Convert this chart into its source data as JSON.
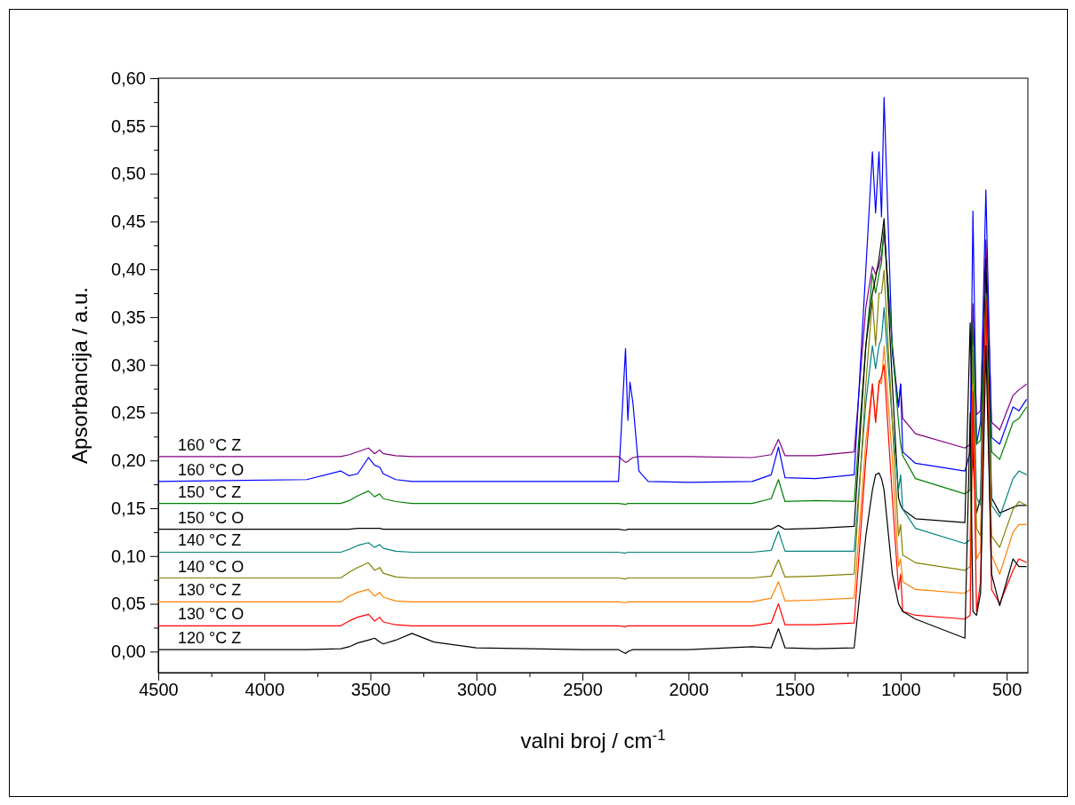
{
  "chart_data": {
    "type": "line",
    "xlabel": "valni broj / cm$^{-1}$",
    "ylabel": "Apsorbancija / a.u.",
    "x": [
      4500,
      3800,
      3640,
      3600,
      3560,
      3509,
      3480,
      3456,
      3439,
      3380,
      3304,
      3200,
      3000,
      2500,
      2330,
      2297,
      2286,
      2276,
      2262,
      2234,
      2190,
      2000,
      1700,
      1610,
      1576,
      1545,
      1400,
      1219,
      1164,
      1133,
      1118,
      1102,
      1090,
      1078,
      1039,
      1010,
      1000,
      990,
      930,
      697,
      672,
      659,
      642,
      623,
      598,
      571,
      533,
      470,
      442,
      406
    ],
    "xlim": [
      4500,
      400
    ],
    "xticks": [
      4500,
      {
        "value": 4250,
        "label": null
      },
      4000,
      {
        "value": 3750,
        "label": null
      },
      3500,
      {
        "value": 3250,
        "label": null
      },
      3000,
      {
        "value": 2750,
        "label": null
      },
      2500,
      {
        "value": 2250,
        "label": null
      },
      2000,
      {
        "value": 1750,
        "label": null
      },
      1500,
      {
        "value": 1250,
        "label": null
      },
      1000,
      {
        "value": 750,
        "label": null
      },
      500
    ],
    "ylim": [
      -0.022,
      0.6
    ],
    "yticks": [
      {
        "value": 0,
        "label": "0,00"
      },
      {
        "value": 0.025,
        "label": null
      },
      {
        "value": 0.05,
        "label": "0,05"
      },
      {
        "value": 0.075,
        "label": null
      },
      {
        "value": 0.1,
        "label": "0,10"
      },
      {
        "value": 0.125,
        "label": null
      },
      {
        "value": 0.15,
        "label": "0,15"
      },
      {
        "value": 0.175,
        "label": null
      },
      {
        "value": 0.2,
        "label": "0,20"
      },
      {
        "value": 0.225,
        "label": null
      },
      {
        "value": 0.25,
        "label": "0,25"
      },
      {
        "value": 0.275,
        "label": null
      },
      {
        "value": 0.3,
        "label": "0,30"
      },
      {
        "value": 0.325,
        "label": null
      },
      {
        "value": 0.35,
        "label": "0,35"
      },
      {
        "value": 0.375,
        "label": null
      },
      {
        "value": 0.4,
        "label": "0,40"
      },
      {
        "value": 0.425,
        "label": null
      },
      {
        "value": 0.45,
        "label": "0,45"
      },
      {
        "value": 0.475,
        "label": null
      },
      {
        "value": 0.5,
        "label": "0,50"
      },
      {
        "value": 0.525,
        "label": null
      },
      {
        "value": 0.55,
        "label": "0,55"
      },
      {
        "value": 0.575,
        "label": null
      },
      {
        "value": 0.6,
        "label": "0,60"
      }
    ],
    "grid": false,
    "legend": false,
    "marker": "none",
    "line_style": "solid",
    "series": [
      {
        "name": "160 °C Z",
        "color": "#800080",
        "values": [
          0.204,
          0.204,
          0.204,
          0.206,
          0.209,
          0.213,
          0.207,
          0.211,
          0.207,
          0.205,
          0.204,
          0.204,
          0.204,
          0.204,
          0.204,
          0.198,
          0.199,
          0.201,
          0.203,
          0.204,
          0.204,
          0.204,
          0.203,
          0.206,
          0.222,
          0.205,
          0.205,
          0.209,
          0.36,
          0.403,
          0.395,
          0.403,
          0.415,
          0.439,
          0.32,
          0.256,
          0.28,
          0.244,
          0.228,
          0.213,
          0.217,
          0.364,
          0.248,
          0.252,
          0.431,
          0.24,
          0.232,
          0.268,
          0.274,
          0.28
        ]
      },
      {
        "name": "160 °C O",
        "color": "#0000ff",
        "values": [
          0.178,
          0.18,
          0.189,
          0.184,
          0.186,
          0.203,
          0.195,
          0.193,
          0.186,
          0.18,
          0.178,
          0.178,
          0.178,
          0.178,
          0.178,
          0.317,
          0.242,
          0.282,
          0.26,
          0.189,
          0.178,
          0.177,
          0.178,
          0.185,
          0.214,
          0.182,
          0.181,
          0.185,
          0.4,
          0.523,
          0.459,
          0.523,
          0.455,
          0.58,
          0.312,
          0.256,
          0.28,
          0.209,
          0.197,
          0.189,
          0.209,
          0.461,
          0.217,
          0.24,
          0.483,
          0.224,
          0.217,
          0.256,
          0.252,
          0.264
        ]
      },
      {
        "name": "150 °C Z",
        "color": "#008000",
        "values": [
          0.155,
          0.155,
          0.155,
          0.158,
          0.163,
          0.168,
          0.162,
          0.165,
          0.16,
          0.157,
          0.155,
          0.155,
          0.155,
          0.155,
          0.155,
          0.154,
          0.155,
          0.155,
          0.155,
          0.155,
          0.155,
          0.155,
          0.155,
          0.16,
          0.18,
          0.157,
          0.158,
          0.157,
          0.32,
          0.395,
          0.375,
          0.395,
          0.407,
          0.443,
          0.32,
          0.24,
          0.217,
          0.205,
          0.181,
          0.165,
          0.169,
          0.344,
          0.217,
          0.221,
          0.383,
          0.209,
          0.201,
          0.24,
          0.244,
          0.256
        ]
      },
      {
        "name": "150 °C O",
        "color": "#000000",
        "values": [
          0.128,
          0.128,
          0.128,
          0.128,
          0.129,
          0.129,
          0.129,
          0.129,
          0.128,
          0.128,
          0.128,
          0.128,
          0.128,
          0.128,
          0.128,
          0.127,
          0.128,
          0.128,
          0.128,
          0.128,
          0.128,
          0.128,
          0.128,
          0.128,
          0.132,
          0.128,
          0.129,
          0.131,
          0.32,
          0.375,
          0.391,
          0.411,
          0.431,
          0.453,
          0.28,
          0.161,
          0.153,
          0.149,
          0.139,
          0.135,
          0.344,
          0.201,
          0.145,
          0.161,
          0.411,
          0.161,
          0.145,
          0.151,
          0.153,
          0.153
        ]
      },
      {
        "name": "140 °C Z",
        "color": "#008080",
        "values": [
          0.104,
          0.104,
          0.104,
          0.107,
          0.111,
          0.114,
          0.109,
          0.112,
          0.108,
          0.105,
          0.104,
          0.104,
          0.104,
          0.104,
          0.104,
          0.103,
          0.104,
          0.104,
          0.104,
          0.104,
          0.104,
          0.104,
          0.104,
          0.106,
          0.126,
          0.105,
          0.105,
          0.105,
          0.26,
          0.32,
          0.296,
          0.32,
          0.328,
          0.36,
          0.24,
          0.169,
          0.185,
          0.149,
          0.129,
          0.113,
          0.117,
          0.32,
          0.161,
          0.153,
          0.36,
          0.153,
          0.141,
          0.181,
          0.189,
          0.185
        ]
      },
      {
        "name": "140 °C O",
        "color": "#808000",
        "values": [
          0.077,
          0.077,
          0.077,
          0.083,
          0.088,
          0.093,
          0.085,
          0.088,
          0.082,
          0.078,
          0.077,
          0.077,
          0.077,
          0.077,
          0.077,
          0.076,
          0.077,
          0.077,
          0.077,
          0.077,
          0.077,
          0.077,
          0.077,
          0.079,
          0.096,
          0.078,
          0.079,
          0.081,
          0.28,
          0.368,
          0.32,
          0.375,
          0.375,
          0.399,
          0.24,
          0.121,
          0.133,
          0.101,
          0.093,
          0.085,
          0.089,
          0.32,
          0.129,
          0.121,
          0.375,
          0.121,
          0.109,
          0.149,
          0.157,
          0.153
        ]
      },
      {
        "name": "130 °C Z",
        "color": "#ff8000",
        "values": [
          0.052,
          0.052,
          0.052,
          0.058,
          0.062,
          0.065,
          0.058,
          0.062,
          0.057,
          0.053,
          0.052,
          0.052,
          0.052,
          0.052,
          0.052,
          0.051,
          0.052,
          0.052,
          0.052,
          0.052,
          0.052,
          0.052,
          0.052,
          0.056,
          0.073,
          0.053,
          0.054,
          0.056,
          0.22,
          0.28,
          0.24,
          0.284,
          0.28,
          0.32,
          0.201,
          0.089,
          0.097,
          0.073,
          0.065,
          0.061,
          0.065,
          0.28,
          0.097,
          0.105,
          0.352,
          0.101,
          0.081,
          0.125,
          0.133,
          0.133
        ]
      },
      {
        "name": "130 °C O",
        "color": "#ff0000",
        "values": [
          0.027,
          0.027,
          0.027,
          0.032,
          0.036,
          0.039,
          0.032,
          0.036,
          0.031,
          0.028,
          0.027,
          0.027,
          0.027,
          0.027,
          0.027,
          0.026,
          0.027,
          0.027,
          0.027,
          0.027,
          0.027,
          0.027,
          0.027,
          0.03,
          0.05,
          0.028,
          0.028,
          0.03,
          0.201,
          0.28,
          0.24,
          0.28,
          0.288,
          0.3,
          0.161,
          0.065,
          0.081,
          0.042,
          0.038,
          0.034,
          0.038,
          0.272,
          0.042,
          0.073,
          0.368,
          0.065,
          0.05,
          0.085,
          0.097,
          0.093
        ]
      },
      {
        "name": "120 °C Z",
        "color": "#000000",
        "values": [
          0.002,
          0.002,
          0.003,
          0.005,
          0.009,
          0.012,
          0.014,
          0.01,
          0.008,
          0.012,
          0.019,
          0.01,
          0.004,
          0.002,
          0.002,
          -0.002,
          0.0,
          0.001,
          0.002,
          0.002,
          0.002,
          0.002,
          0.005,
          0.004,
          0.024,
          0.004,
          0.003,
          0.004,
          0.121,
          0.169,
          0.185,
          0.187,
          0.181,
          0.169,
          0.081,
          0.05,
          0.046,
          0.042,
          0.034,
          0.014,
          0.25,
          0.042,
          0.038,
          0.061,
          0.32,
          0.081,
          0.048,
          0.097,
          0.089,
          0.089
        ]
      }
    ]
  }
}
